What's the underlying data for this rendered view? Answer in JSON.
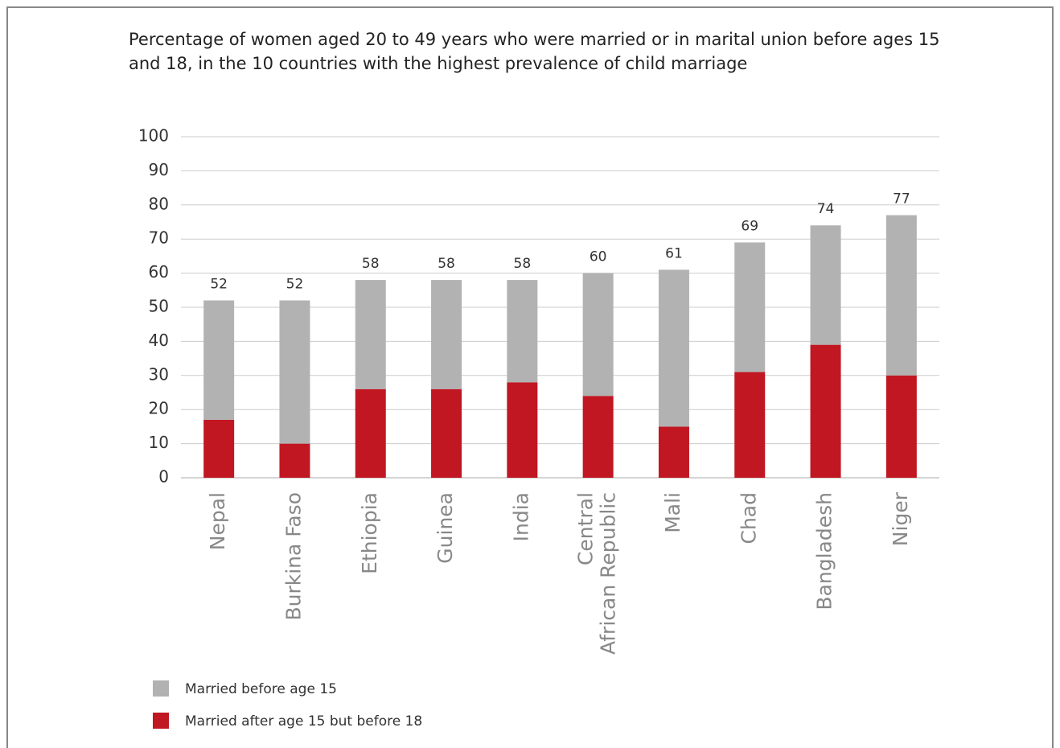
{
  "chart_data": {
    "type": "stacked_bar",
    "title": "Percentage of women aged 20 to 49 years who were married or in marital union before ages 15 and 18, in the 10 countries with the highest prevalence of child marriage",
    "categories": [
      "Nepal",
      "Burkina Faso",
      "Ethiopia",
      "Guinea",
      "India",
      "Central African Republic",
      "Mali",
      "Chad",
      "Bangladesh",
      "Niger"
    ],
    "series": [
      {
        "name": "Married before age 15",
        "color": "#b2b2b2",
        "values": [
          35,
          42,
          32,
          32,
          30,
          36,
          46,
          38,
          35,
          47
        ]
      },
      {
        "name": "Married after age 15 but before 18",
        "color": "#c01722",
        "values": [
          17,
          10,
          26,
          26,
          28,
          24,
          15,
          31,
          39,
          30
        ]
      }
    ],
    "totals": [
      52,
      52,
      58,
      58,
      58,
      60,
      61,
      69,
      74,
      77
    ],
    "ylim": [
      0,
      100
    ],
    "yticks": [
      0,
      10,
      20,
      30,
      40,
      50,
      60,
      70,
      80,
      90,
      100
    ],
    "grid": true
  }
}
